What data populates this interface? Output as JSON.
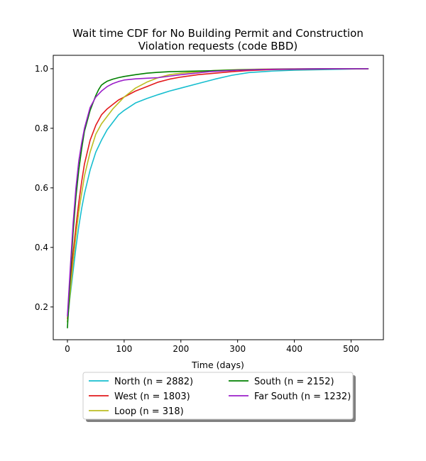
{
  "chart_data": {
    "type": "line",
    "title": "Wait time CDF for No Building Permit and Construction Violation  requests (code BBD)",
    "title_lines": [
      "Wait time CDF for No Building Permit and Construction",
      "Violation  requests (code BBD)"
    ],
    "xlabel": "Time (days)",
    "ylabel": "",
    "xlim": [
      -25,
      557
    ],
    "ylim": [
      0.09,
      1.045
    ],
    "x_ticks": [
      0,
      100,
      200,
      300,
      400,
      500
    ],
    "x_tick_labels": [
      "0",
      "100",
      "200",
      "300",
      "400",
      "500"
    ],
    "y_ticks": [
      0.2,
      0.4,
      0.6,
      0.8,
      1.0
    ],
    "y_tick_labels": [
      "0.2",
      "0.4",
      "0.6",
      "0.8",
      "1.0"
    ],
    "grid": false,
    "legend_position": "below plot, two columns, shadowed box",
    "series": [
      {
        "name": "North (n = 2882)",
        "color": "#17becf",
        "x": [
          0,
          5,
          10,
          15,
          20,
          25,
          30,
          40,
          50,
          60,
          70,
          80,
          90,
          100,
          120,
          140,
          160,
          180,
          200,
          230,
          260,
          290,
          320,
          360,
          400,
          450,
          500,
          530
        ],
        "y": [
          0.15,
          0.24,
          0.32,
          0.4,
          0.47,
          0.53,
          0.58,
          0.66,
          0.72,
          0.76,
          0.795,
          0.82,
          0.845,
          0.86,
          0.885,
          0.9,
          0.913,
          0.925,
          0.935,
          0.95,
          0.965,
          0.978,
          0.987,
          0.992,
          0.995,
          0.997,
          0.999,
          1.0
        ]
      },
      {
        "name": "West (n = 1803)",
        "color": "#e31a1c",
        "x": [
          0,
          5,
          10,
          15,
          20,
          25,
          30,
          40,
          50,
          60,
          70,
          80,
          90,
          100,
          120,
          140,
          160,
          180,
          200,
          230,
          260,
          290,
          320,
          360,
          400,
          450,
          500,
          530
        ],
        "y": [
          0.16,
          0.28,
          0.38,
          0.47,
          0.55,
          0.62,
          0.68,
          0.76,
          0.81,
          0.845,
          0.865,
          0.88,
          0.895,
          0.905,
          0.925,
          0.94,
          0.955,
          0.965,
          0.972,
          0.98,
          0.985,
          0.99,
          0.994,
          0.997,
          0.998,
          0.999,
          1.0,
          1.0
        ]
      },
      {
        "name": "Loop (n = 318)",
        "color": "#bcbd22",
        "x": [
          0,
          5,
          10,
          15,
          20,
          25,
          30,
          40,
          50,
          60,
          70,
          80,
          90,
          100,
          110,
          120,
          140,
          160,
          180,
          200,
          230,
          260,
          300,
          350,
          400,
          450,
          500,
          530
        ],
        "y": [
          0.15,
          0.25,
          0.35,
          0.44,
          0.52,
          0.58,
          0.64,
          0.72,
          0.78,
          0.815,
          0.84,
          0.865,
          0.885,
          0.905,
          0.92,
          0.935,
          0.955,
          0.97,
          0.98,
          0.985,
          0.99,
          0.994,
          0.997,
          0.999,
          1.0,
          1.0,
          1.0,
          1.0
        ]
      },
      {
        "name": "South (n = 2152)",
        "color": "#008000",
        "x": [
          0,
          5,
          10,
          15,
          20,
          25,
          30,
          40,
          50,
          55,
          60,
          65,
          70,
          80,
          90,
          100,
          110,
          120,
          140,
          160,
          180,
          200,
          250,
          300,
          350,
          400,
          450,
          500,
          530
        ],
        "y": [
          0.13,
          0.3,
          0.45,
          0.57,
          0.66,
          0.73,
          0.79,
          0.86,
          0.91,
          0.93,
          0.945,
          0.952,
          0.958,
          0.965,
          0.97,
          0.974,
          0.977,
          0.98,
          0.985,
          0.988,
          0.99,
          0.991,
          0.993,
          0.996,
          0.998,
          0.999,
          1.0,
          1.0,
          1.0
        ]
      },
      {
        "name": "Far South (n = 1232)",
        "color": "#9b1fc9",
        "x": [
          0,
          5,
          10,
          15,
          20,
          25,
          30,
          40,
          50,
          60,
          70,
          80,
          90,
          100,
          120,
          140,
          160,
          180,
          200,
          250,
          300,
          350,
          400,
          450,
          500,
          530
        ],
        "y": [
          0.17,
          0.33,
          0.48,
          0.6,
          0.69,
          0.75,
          0.8,
          0.87,
          0.905,
          0.925,
          0.94,
          0.95,
          0.957,
          0.962,
          0.966,
          0.968,
          0.97,
          0.975,
          0.98,
          0.99,
          0.995,
          0.998,
          0.999,
          1.0,
          1.0,
          1.0
        ]
      }
    ]
  }
}
